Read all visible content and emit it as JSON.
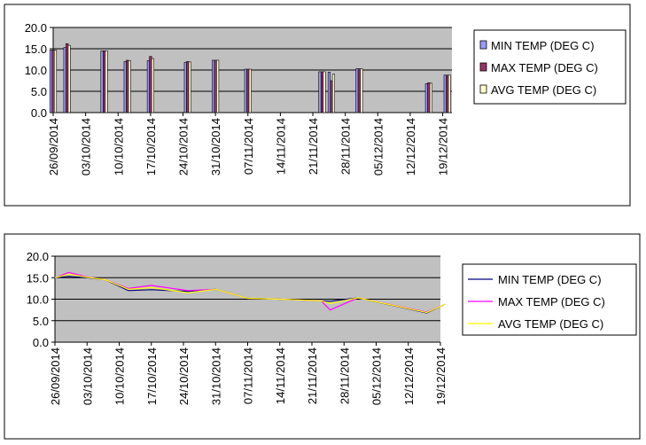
{
  "chart_data": [
    {
      "type": "bar",
      "x": [
        "26/09/2014",
        "29/09/2014",
        "07/10/2014",
        "12/10/2014",
        "17/10/2014",
        "25/10/2014",
        "31/10/2014",
        "07/11/2014",
        "23/11/2014",
        "25/11/2014",
        "01/12/2014",
        "16/12/2014",
        "20/12/2014"
      ],
      "series": [
        {
          "name": "MIN TEMP (DEG C)",
          "color": "#9999ff",
          "values": [
            14.7,
            15.3,
            14.5,
            12.0,
            12.2,
            11.8,
            12.3,
            10.2,
            9.6,
            9.5,
            10.3,
            6.8,
            8.8
          ]
        },
        {
          "name": "MAX TEMP (DEG C)",
          "color": "#993366",
          "values": [
            14.7,
            16.2,
            14.5,
            12.3,
            13.2,
            12.0,
            12.3,
            10.2,
            9.6,
            7.5,
            10.3,
            7.0,
            8.8
          ]
        },
        {
          "name": "AVG TEMP (DEG C)",
          "color": "#ffffcc",
          "values": [
            14.7,
            15.8,
            14.5,
            12.2,
            12.7,
            11.9,
            12.3,
            10.2,
            9.6,
            9.0,
            10.3,
            6.9,
            8.8
          ]
        }
      ],
      "xlim": [
        "26/09/2014",
        "21/12/2014"
      ],
      "xticks": [
        "26/09/2014",
        "03/10/2014",
        "10/10/2014",
        "17/10/2014",
        "24/10/2014",
        "31/10/2014",
        "07/11/2014",
        "14/11/2014",
        "21/11/2014",
        "28/11/2014",
        "05/12/2014",
        "12/12/2014",
        "19/12/2014"
      ],
      "ylim": [
        0,
        20
      ],
      "yticks": [
        {
          "value": 0,
          "label": "0.0"
        },
        {
          "value": 5,
          "label": "5.0"
        },
        {
          "value": 10,
          "label": "10.0"
        },
        {
          "value": 15,
          "label": "15.0"
        },
        {
          "value": 20,
          "label": "20.0"
        }
      ],
      "grid": true
    },
    {
      "type": "line",
      "x": [
        "26/09/2014",
        "29/09/2014",
        "03/10/2014",
        "07/10/2014",
        "12/10/2014",
        "17/10/2014",
        "25/10/2014",
        "31/10/2014",
        "07/11/2014",
        "14/11/2014",
        "23/11/2014",
        "25/11/2014",
        "01/12/2014",
        "16/12/2014",
        "20/12/2014"
      ],
      "series": [
        {
          "name": "MIN TEMP (DEG C)",
          "color": "#000080",
          "values": [
            15.0,
            15.3,
            15.0,
            14.5,
            12.0,
            12.2,
            11.8,
            12.3,
            10.2,
            10.0,
            9.6,
            9.5,
            10.3,
            6.8,
            8.8
          ]
        },
        {
          "name": "MAX TEMP (DEG C)",
          "color": "#ff00ff",
          "values": [
            15.0,
            16.2,
            15.2,
            14.5,
            12.5,
            13.2,
            12.0,
            12.3,
            10.2,
            10.0,
            9.6,
            7.5,
            10.3,
            7.0,
            8.8
          ]
        },
        {
          "name": "AVG TEMP (DEG C)",
          "color": "#ffff00",
          "values": [
            15.0,
            15.8,
            15.1,
            14.5,
            12.3,
            12.7,
            11.5,
            12.3,
            10.2,
            10.0,
            9.6,
            9.0,
            10.3,
            6.9,
            8.8
          ]
        }
      ],
      "xlim": [
        "26/09/2014",
        "19/12/2014"
      ],
      "xticks": [
        "26/09/2014",
        "03/10/2014",
        "10/10/2014",
        "17/10/2014",
        "24/10/2014",
        "31/10/2014",
        "07/11/2014",
        "14/11/2014",
        "21/11/2014",
        "28/11/2014",
        "05/12/2014",
        "12/12/2014",
        "19/12/2014"
      ],
      "ylim": [
        0,
        20
      ],
      "yticks": [
        {
          "value": 0,
          "label": "0.0"
        },
        {
          "value": 5,
          "label": "5.0"
        },
        {
          "value": 10,
          "label": "10.0"
        },
        {
          "value": 15,
          "label": "15.0"
        },
        {
          "value": 20,
          "label": "20.0"
        }
      ],
      "grid": true
    }
  ]
}
